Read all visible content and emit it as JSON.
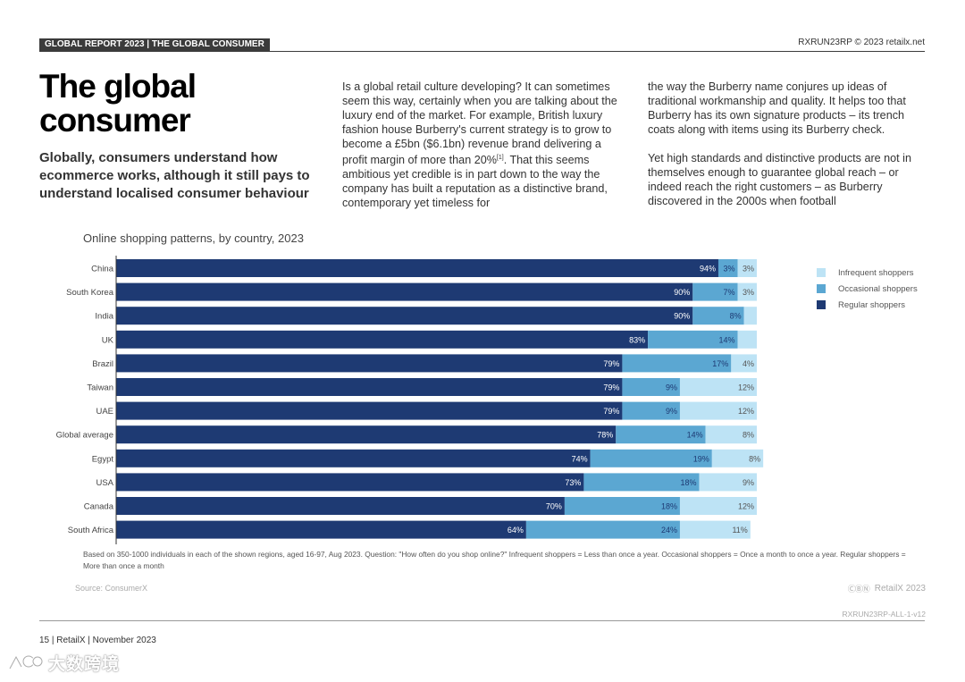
{
  "header": {
    "tag": "GLOBAL REPORT 2023 | THE GLOBAL CONSUMER",
    "right": "RXRUN23RP © 2023 retailx.net"
  },
  "title": "The global\nconsumer",
  "subtitle": "Globally, consumers understand how ecommerce works, although it still pays to understand localised consumer behaviour",
  "body": {
    "col1_text": "Is a global retail culture developing? It can sometimes seem this way, certainly when you are talking about the luxury end of the market. For example, British luxury fashion house Burberry's current strategy is to grow to become a £5bn ($6.1bn) revenue brand delivering a profit margin of more than 20%",
    "col1_sup": "[1]",
    "col1_text_after": ". That this seems ambitious yet credible is in part down to the way the company has built a reputation as a distinctive brand, contemporary yet timeless for",
    "col2_p1": "the way the Burberry name conjures up ideas of traditional workmanship and quality. It helps too that Burberry has its own signature products – its trench coats along with items using its Burberry check.",
    "col2_p2": "Yet high standards and distinctive products are not in themselves enough to guarantee global reach – or indeed reach the right customers – as Burberry discovered in the 2000s when football"
  },
  "chart_data": {
    "type": "bar",
    "orientation": "horizontal",
    "stacked": true,
    "title": "Online shopping patterns, by country, 2023",
    "categories": [
      "China",
      "South Korea",
      "India",
      "UK",
      "Brazil",
      "Taiwan",
      "UAE",
      "Global average",
      "Egypt",
      "USA",
      "Canada",
      "South Africa"
    ],
    "series": [
      {
        "name": "Regular shoppers",
        "color": "#1e3a73",
        "values": [
          94,
          90,
          90,
          83,
          79,
          79,
          79,
          78,
          74,
          73,
          70,
          64
        ],
        "labels": [
          "94%",
          "90%",
          "90%",
          "83%",
          "79%",
          "79%",
          "79%",
          "78%",
          "74%",
          "73%",
          "70%",
          "64%"
        ]
      },
      {
        "name": "Occasional shoppers",
        "color": "#5ba7d2",
        "values": [
          3,
          7,
          8,
          14,
          17,
          9,
          9,
          14,
          19,
          18,
          18,
          24
        ],
        "labels": [
          "3%",
          "7%",
          "8%",
          "14%",
          "17%",
          "9%",
          "9%",
          "14%",
          "19%",
          "18%",
          "18%",
          "24%"
        ]
      },
      {
        "name": "Infrequent shoppers",
        "color": "#bde3f5",
        "values": [
          3,
          3,
          2,
          3,
          4,
          12,
          12,
          8,
          8,
          9,
          12,
          11
        ],
        "labels": [
          "3%",
          "3%",
          "",
          "",
          "4%",
          "12%",
          "12%",
          "8%",
          "8%",
          "9%",
          "12%",
          "11%"
        ]
      }
    ],
    "legend_order": [
      "Infrequent shoppers",
      "Occasional shoppers",
      "Regular shoppers"
    ],
    "xlim": [
      0,
      100
    ],
    "legend_position": "right"
  },
  "note": "Based on 350-1000 individuals in each of the shown regions, aged 16-97, Aug 2023. Question: \"How often do you shop online?\" Infrequent shoppers = Less than once a year. Occasional shoppers = Once a month to once a year. Regular shoppers = More than once a month",
  "source": "Source: ConsumerX",
  "brand": {
    "icon": "cc-by-nc-nd-icon",
    "cc_glyphs": "ⒸⒷⓃ",
    "name": "RetailX 2023"
  },
  "doc_code": "RXRUN23RP-ALL-1-v12",
  "footer": "15 | RetailX | November 2023",
  "watermark": "大数跨境"
}
